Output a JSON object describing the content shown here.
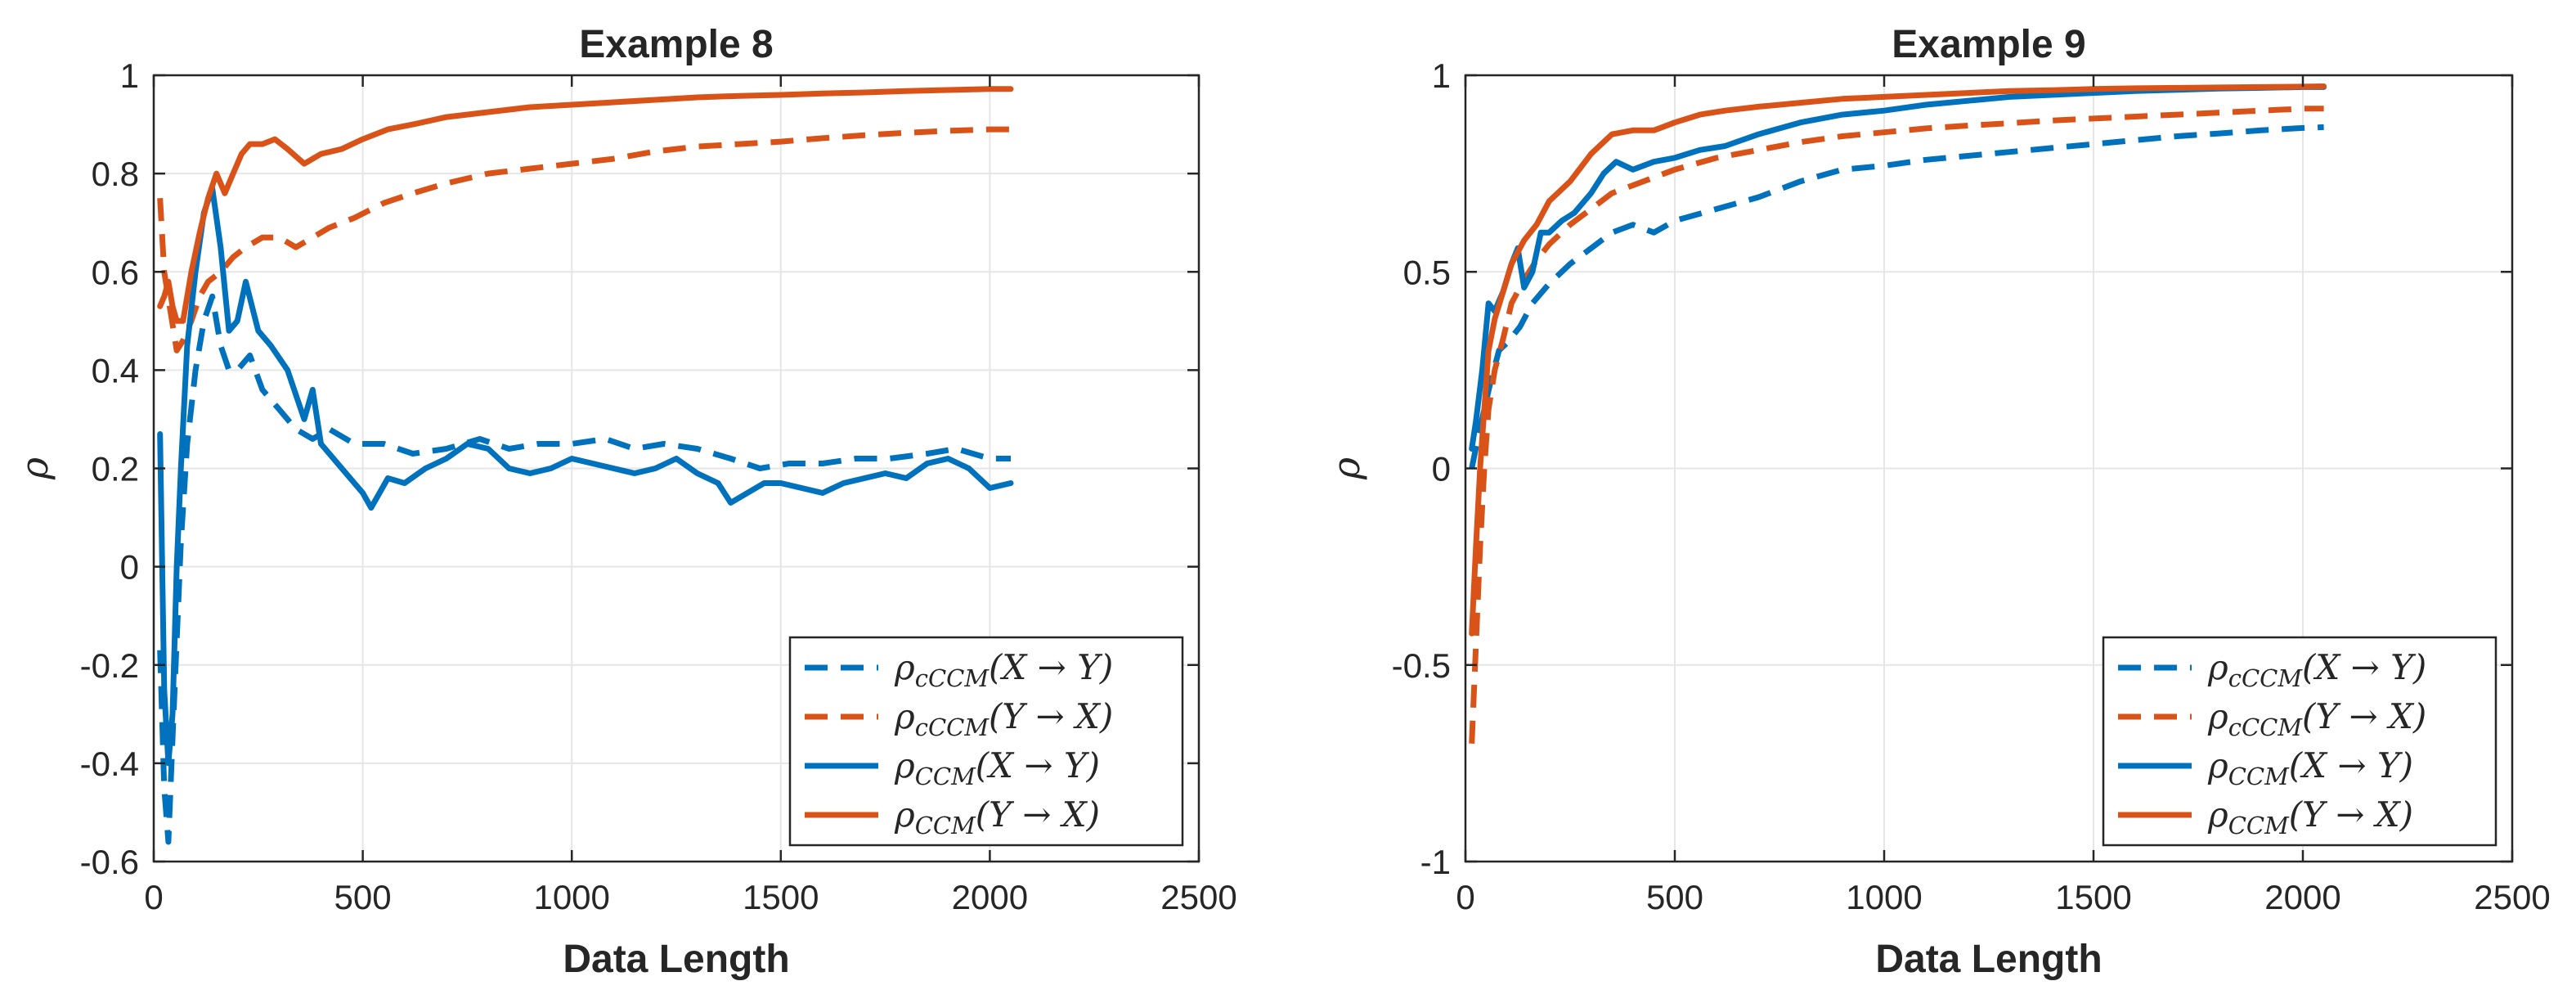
{
  "chart_data": [
    {
      "type": "line",
      "title": "Example 8",
      "xlabel": "Data Length",
      "ylabel": "ρ",
      "xlim": [
        0,
        2500
      ],
      "ylim": [
        -0.6,
        1.0
      ],
      "xticks": [
        0,
        500,
        1000,
        1500,
        2000,
        2500
      ],
      "xtick_labels": [
        "0",
        "500",
        "1000",
        "1500",
        "2000",
        "2500"
      ],
      "yticks": [
        -0.6,
        -0.4,
        -0.2,
        0,
        0.2,
        0.4,
        0.6,
        0.8,
        1
      ],
      "ytick_labels": [
        "-0.6",
        "-0.4",
        "-0.2",
        "0",
        "0.2",
        "0.4",
        "0.6",
        "0.8",
        "1"
      ],
      "grid": true,
      "legend_position": "bottom-right",
      "series": [
        {
          "name": "ρcCCM(X → Y)",
          "legend": {
            "sym": "ρ",
            "sub": "cCCM",
            "args": "(X → Y)"
          },
          "color": "#0072BD",
          "style": "dashed",
          "x": [
            15,
            25,
            35,
            45,
            55,
            65,
            80,
            100,
            120,
            140,
            160,
            180,
            200,
            230,
            260,
            300,
            340,
            380,
            420,
            480,
            550,
            620,
            700,
            780,
            850,
            920,
            1000,
            1080,
            1150,
            1220,
            1300,
            1380,
            1450,
            1520,
            1600,
            1680,
            1760,
            1850,
            1920,
            2000,
            2050
          ],
          "values": [
            -0.17,
            -0.45,
            -0.56,
            -0.35,
            -0.15,
            0.05,
            0.25,
            0.4,
            0.5,
            0.55,
            0.45,
            0.4,
            0.4,
            0.43,
            0.36,
            0.32,
            0.28,
            0.26,
            0.28,
            0.25,
            0.25,
            0.23,
            0.24,
            0.26,
            0.24,
            0.25,
            0.25,
            0.26,
            0.24,
            0.25,
            0.24,
            0.22,
            0.2,
            0.21,
            0.21,
            0.22,
            0.22,
            0.23,
            0.24,
            0.22,
            0.22
          ]
        },
        {
          "name": "ρcCCM(Y → X)",
          "legend": {
            "sym": "ρ",
            "sub": "cCCM",
            "args": "(Y → X)"
          },
          "color": "#D95319",
          "style": "dashed",
          "x": [
            15,
            25,
            40,
            55,
            70,
            90,
            110,
            130,
            160,
            190,
            220,
            260,
            300,
            340,
            380,
            420,
            480,
            550,
            620,
            700,
            800,
            900,
            1000,
            1100,
            1200,
            1300,
            1400,
            1500,
            1600,
            1700,
            1800,
            1900,
            2000,
            2050
          ],
          "values": [
            0.75,
            0.6,
            0.52,
            0.44,
            0.46,
            0.5,
            0.55,
            0.58,
            0.6,
            0.63,
            0.65,
            0.67,
            0.67,
            0.65,
            0.67,
            0.69,
            0.71,
            0.74,
            0.76,
            0.78,
            0.8,
            0.81,
            0.82,
            0.83,
            0.845,
            0.855,
            0.86,
            0.865,
            0.872,
            0.878,
            0.883,
            0.887,
            0.89,
            0.89
          ]
        },
        {
          "name": "ρCCM(X → Y)",
          "legend": {
            "sym": "ρ",
            "sub": "CCM",
            "args": "(X → Y)"
          },
          "color": "#0072BD",
          "style": "solid",
          "x": [
            15,
            25,
            35,
            45,
            55,
            65,
            80,
            100,
            120,
            140,
            160,
            180,
            200,
            220,
            250,
            280,
            320,
            360,
            380,
            400,
            450,
            500,
            520,
            560,
            600,
            650,
            700,
            750,
            800,
            850,
            900,
            950,
            1000,
            1050,
            1100,
            1150,
            1200,
            1250,
            1300,
            1350,
            1380,
            1420,
            1460,
            1500,
            1550,
            1600,
            1650,
            1700,
            1750,
            1800,
            1850,
            1900,
            1950,
            2000,
            2050
          ],
          "values": [
            0.27,
            -0.25,
            -0.4,
            -0.3,
            0.0,
            0.2,
            0.45,
            0.6,
            0.72,
            0.77,
            0.65,
            0.48,
            0.5,
            0.58,
            0.48,
            0.45,
            0.4,
            0.3,
            0.36,
            0.25,
            0.2,
            0.15,
            0.12,
            0.18,
            0.17,
            0.2,
            0.22,
            0.25,
            0.24,
            0.2,
            0.19,
            0.2,
            0.22,
            0.21,
            0.2,
            0.19,
            0.2,
            0.22,
            0.19,
            0.17,
            0.13,
            0.15,
            0.17,
            0.17,
            0.16,
            0.15,
            0.17,
            0.18,
            0.19,
            0.18,
            0.21,
            0.22,
            0.2,
            0.16,
            0.17
          ]
        },
        {
          "name": "ρCCM(Y → X)",
          "legend": {
            "sym": "ρ",
            "sub": "CCM",
            "args": "(Y → X)"
          },
          "color": "#D95319",
          "style": "solid",
          "x": [
            15,
            25,
            35,
            45,
            55,
            70,
            90,
            110,
            130,
            150,
            170,
            190,
            210,
            230,
            260,
            290,
            320,
            360,
            380,
            400,
            450,
            500,
            560,
            620,
            700,
            800,
            900,
            1000,
            1100,
            1200,
            1300,
            1400,
            1500,
            1600,
            1700,
            1800,
            1900,
            2000,
            2050
          ],
          "values": [
            0.53,
            0.55,
            0.58,
            0.53,
            0.5,
            0.5,
            0.6,
            0.68,
            0.75,
            0.8,
            0.76,
            0.8,
            0.84,
            0.86,
            0.86,
            0.87,
            0.85,
            0.82,
            0.83,
            0.84,
            0.85,
            0.87,
            0.89,
            0.9,
            0.915,
            0.925,
            0.935,
            0.94,
            0.945,
            0.95,
            0.955,
            0.958,
            0.96,
            0.963,
            0.965,
            0.968,
            0.97,
            0.972,
            0.972
          ]
        }
      ]
    },
    {
      "type": "line",
      "title": "Example 9",
      "xlabel": "Data Length",
      "ylabel": "ρ",
      "xlim": [
        0,
        2500
      ],
      "ylim": [
        -1,
        1
      ],
      "xticks": [
        0,
        500,
        1000,
        1500,
        2000,
        2500
      ],
      "xtick_labels": [
        "0",
        "500",
        "1000",
        "1500",
        "2000",
        "2500"
      ],
      "yticks": [
        -1,
        -0.5,
        0,
        0.5,
        1
      ],
      "ytick_labels": [
        "-1",
        "-0.5",
        "0",
        "0.5",
        "1"
      ],
      "grid": true,
      "legend_position": "bottom-right",
      "series": [
        {
          "name": "ρcCCM(X → Y)",
          "legend": {
            "sym": "ρ",
            "sub": "cCCM",
            "args": "(X → Y)"
          },
          "color": "#0072BD",
          "style": "dashed",
          "x": [
            15,
            30,
            45,
            60,
            80,
            100,
            130,
            160,
            200,
            250,
            300,
            350,
            400,
            450,
            500,
            600,
            700,
            800,
            900,
            1000,
            1100,
            1200,
            1300,
            1400,
            1500,
            1600,
            1700,
            1800,
            1900,
            2000,
            2050
          ],
          "values": [
            0.0,
            0.08,
            0.15,
            0.22,
            0.3,
            0.32,
            0.36,
            0.42,
            0.47,
            0.52,
            0.56,
            0.6,
            0.62,
            0.6,
            0.63,
            0.66,
            0.69,
            0.73,
            0.76,
            0.77,
            0.785,
            0.795,
            0.805,
            0.815,
            0.825,
            0.835,
            0.845,
            0.852,
            0.86,
            0.866,
            0.868
          ]
        },
        {
          "name": "ρcCCM(Y → X)",
          "legend": {
            "sym": "ρ",
            "sub": "cCCM",
            "args": "(Y → X)"
          },
          "color": "#D95319",
          "style": "dashed",
          "x": [
            15,
            25,
            35,
            45,
            55,
            70,
            90,
            110,
            140,
            170,
            200,
            250,
            300,
            350,
            400,
            450,
            500,
            600,
            700,
            800,
            900,
            1000,
            1100,
            1200,
            1300,
            1400,
            1500,
            1600,
            1700,
            1800,
            1900,
            2000,
            2050
          ],
          "values": [
            -0.7,
            -0.45,
            -0.2,
            0.0,
            0.15,
            0.25,
            0.33,
            0.42,
            0.48,
            0.53,
            0.57,
            0.62,
            0.66,
            0.7,
            0.72,
            0.74,
            0.76,
            0.79,
            0.81,
            0.83,
            0.845,
            0.855,
            0.865,
            0.872,
            0.878,
            0.885,
            0.89,
            0.895,
            0.9,
            0.905,
            0.91,
            0.915,
            0.915
          ]
        },
        {
          "name": "ρCCM(X → Y)",
          "legend": {
            "sym": "ρ",
            "sub": "CCM",
            "args": "(X → Y)"
          },
          "color": "#0072BD",
          "style": "solid",
          "x": [
            15,
            25,
            40,
            55,
            70,
            90,
            110,
            125,
            140,
            160,
            180,
            200,
            230,
            260,
            300,
            330,
            360,
            400,
            450,
            500,
            560,
            620,
            700,
            800,
            900,
            1000,
            1100,
            1200,
            1300,
            1400,
            1500,
            1600,
            1700,
            1800,
            1900,
            2000,
            2050
          ],
          "values": [
            0.05,
            0.12,
            0.25,
            0.42,
            0.4,
            0.45,
            0.52,
            0.56,
            0.46,
            0.5,
            0.6,
            0.6,
            0.63,
            0.65,
            0.7,
            0.75,
            0.78,
            0.76,
            0.78,
            0.79,
            0.81,
            0.82,
            0.85,
            0.88,
            0.9,
            0.91,
            0.925,
            0.935,
            0.945,
            0.95,
            0.955,
            0.96,
            0.963,
            0.966,
            0.968,
            0.97,
            0.97
          ]
        },
        {
          "name": "ρCCM(Y → X)",
          "legend": {
            "sym": "ρ",
            "sub": "CCM",
            "args": "(Y → X)"
          },
          "color": "#D95319",
          "style": "solid",
          "x": [
            15,
            25,
            35,
            45,
            55,
            70,
            90,
            110,
            140,
            170,
            200,
            250,
            300,
            350,
            400,
            450,
            500,
            560,
            620,
            700,
            800,
            900,
            1000,
            1100,
            1200,
            1300,
            1400,
            1500,
            1600,
            1700,
            1800,
            1900,
            2000,
            2050
          ],
          "values": [
            -0.42,
            -0.2,
            0.0,
            0.15,
            0.3,
            0.38,
            0.45,
            0.52,
            0.58,
            0.62,
            0.68,
            0.73,
            0.8,
            0.85,
            0.86,
            0.86,
            0.88,
            0.9,
            0.91,
            0.92,
            0.93,
            0.94,
            0.945,
            0.95,
            0.955,
            0.96,
            0.962,
            0.965,
            0.967,
            0.968,
            0.969,
            0.97,
            0.971,
            0.972
          ]
        }
      ]
    }
  ]
}
